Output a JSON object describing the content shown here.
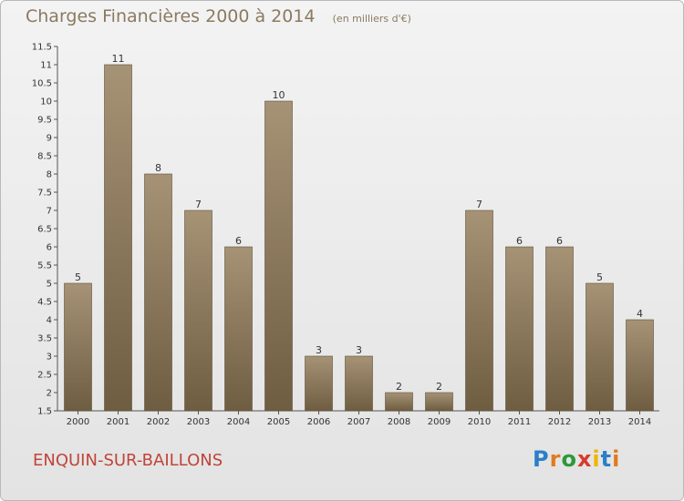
{
  "chart_data": {
    "type": "bar",
    "title": "Charges Financières 2000 à 2014",
    "subtitle": "(en milliers d'€)",
    "categories": [
      "2000",
      "2001",
      "2002",
      "2003",
      "2004",
      "2005",
      "2006",
      "2007",
      "2008",
      "2009",
      "2010",
      "2011",
      "2012",
      "2013",
      "2014"
    ],
    "values": [
      5,
      11,
      8,
      7,
      6,
      10,
      3,
      3,
      2,
      2,
      7,
      6,
      6,
      5,
      4
    ],
    "ylim": [
      1.5,
      11.5
    ],
    "yticks": [
      "1.5",
      "2",
      "2.5",
      "3",
      "3.5",
      "4",
      "4.5",
      "5",
      "5.5",
      "6",
      "6.5",
      "7",
      "7.5",
      "8",
      "8.5",
      "9",
      "9.5",
      "10",
      "10.5",
      "11",
      "11.5"
    ],
    "grid": false,
    "bar_color": "#8f7b5c"
  },
  "commune": "ENQUIN-SUR-BAILLONS",
  "logo": {
    "letters": [
      "P",
      "r",
      "o",
      "x",
      "i",
      "t",
      "i"
    ],
    "colors": [
      "#2a7fc9",
      "#e07b1f",
      "#2a9a3a",
      "#d63a2a",
      "#f0b400",
      "#2a7fc9",
      "#e07b1f"
    ]
  }
}
